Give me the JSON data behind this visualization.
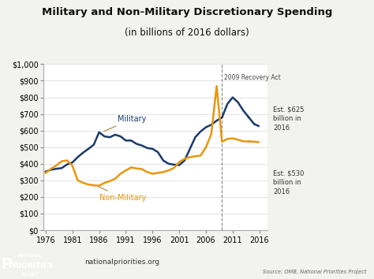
{
  "title1": "Military and Non-Military Discretionary Spending",
  "title2": "(in billions of 2016 dollars)",
  "background_color": "#f2f2ee",
  "plot_bg_color": "#ffffff",
  "military_color": "#1a3a6e",
  "nonmilitary_color": "#e8960c",
  "military_years": [
    1976,
    1977,
    1978,
    1979,
    1980,
    1981,
    1982,
    1983,
    1984,
    1985,
    1986,
    1987,
    1988,
    1989,
    1990,
    1991,
    1992,
    1993,
    1994,
    1995,
    1996,
    1997,
    1998,
    1999,
    2000,
    2001,
    2002,
    2003,
    2004,
    2005,
    2006,
    2007,
    2008,
    2009,
    2010,
    2011,
    2012,
    2013,
    2014,
    2015,
    2016
  ],
  "military_values": [
    353,
    364,
    370,
    374,
    396,
    408,
    440,
    467,
    490,
    515,
    590,
    565,
    560,
    575,
    565,
    540,
    540,
    520,
    510,
    495,
    490,
    470,
    420,
    400,
    395,
    392,
    420,
    490,
    560,
    595,
    620,
    635,
    660,
    678,
    760,
    800,
    770,
    720,
    680,
    640,
    625
  ],
  "nonmilitary_years": [
    1976,
    1977,
    1978,
    1979,
    1980,
    1981,
    1982,
    1983,
    1984,
    1985,
    1986,
    1987,
    1988,
    1989,
    1990,
    1991,
    1992,
    1993,
    1994,
    1995,
    1996,
    1997,
    1998,
    1999,
    2000,
    2001,
    2002,
    2003,
    2004,
    2005,
    2006,
    2007,
    2008,
    2009,
    2010,
    2011,
    2012,
    2013,
    2014,
    2015,
    2016
  ],
  "nonmilitary_values": [
    345,
    370,
    390,
    415,
    420,
    388,
    300,
    285,
    275,
    270,
    268,
    285,
    295,
    310,
    340,
    360,
    378,
    372,
    368,
    350,
    340,
    345,
    350,
    360,
    375,
    410,
    430,
    440,
    445,
    450,
    500,
    580,
    868,
    532,
    550,
    553,
    545,
    535,
    535,
    533,
    530
  ],
  "xlim": [
    1975.5,
    2017.5
  ],
  "ylim": [
    0,
    1000
  ],
  "yticks": [
    0,
    100,
    200,
    300,
    400,
    500,
    600,
    700,
    800,
    900,
    1000
  ],
  "xticks": [
    1976,
    1981,
    1986,
    1991,
    1996,
    2001,
    2006,
    2011,
    2016
  ],
  "recovery_x": 2009,
  "recovery_label": "2009 Recovery Act",
  "est625_label": "Est. $625\nbillion in\n2016",
  "est530_label": "Est. $530\nbillion in\n2016",
  "label_military": "Military",
  "label_nonmilitary": "Non-Military",
  "footer_url": "nationalpriorities.org",
  "footer_source": "Source: OMB, National Priorities Project",
  "logo_green": "#2a7a35",
  "logo_red": "#cc2222"
}
